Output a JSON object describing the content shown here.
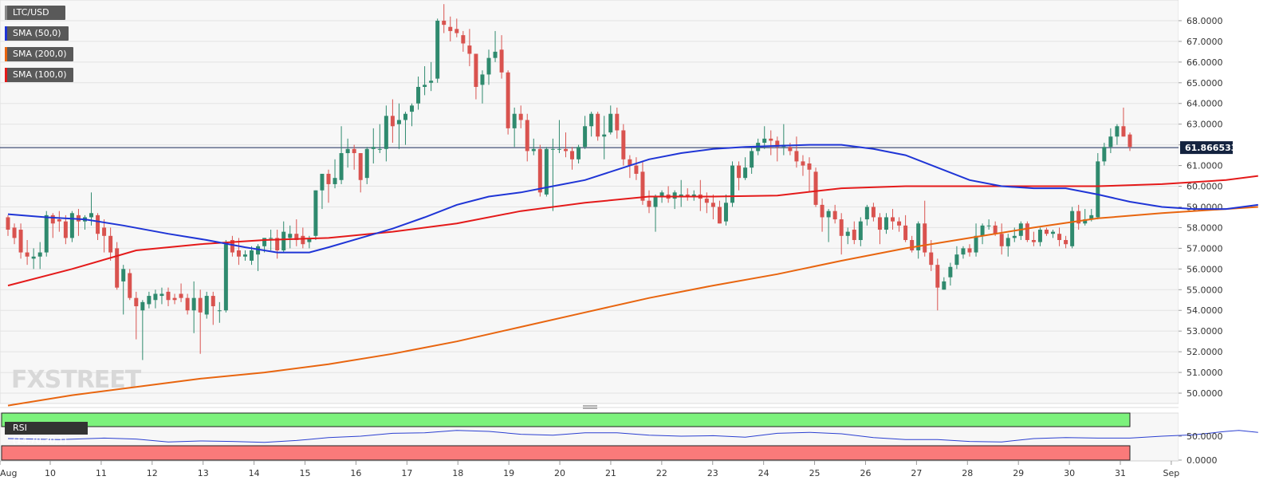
{
  "chart_data": {
    "type": "candlestick",
    "symbol": "LTC/USD",
    "indicators": [
      {
        "label": "SMA (50,0)",
        "color": "#1f35d6"
      },
      {
        "label": "SMA (200,0)",
        "color": "#e8650f"
      },
      {
        "label": "SMA (100,0)",
        "color": "#e41a1a"
      }
    ],
    "rsi_label": "RSI (14,70,30,1)",
    "colors": {
      "up": "#2f8a6e",
      "down": "#d9534f",
      "rsi_line": "#2b3fd1",
      "overbought": "#7cf27c",
      "oversold": "#fa7a7a",
      "price_line": "#1a2a5a",
      "price_tag": "#14233f"
    },
    "price_ylim": [
      49.5,
      69.0
    ],
    "price_ticks": [
      "50.0000",
      "51.0000",
      "52.0000",
      "53.0000",
      "54.0000",
      "55.0000",
      "56.0000",
      "57.0000",
      "58.0000",
      "59.0000",
      "60.0000",
      "61.0000",
      "62.0000",
      "63.0000",
      "64.0000",
      "65.0000",
      "66.0000",
      "67.0000",
      "68.0000"
    ],
    "current_price": "61.866533",
    "rsi_ticks": [
      "50.0000",
      "0.0000"
    ],
    "x_ticks": [
      "Aug",
      "10",
      "11",
      "12",
      "13",
      "14",
      "15",
      "16",
      "17",
      "18",
      "19",
      "20",
      "21",
      "22",
      "23",
      "24",
      "25",
      "26",
      "27",
      "28",
      "29",
      "30",
      "31",
      "Sep"
    ],
    "candles": [
      [
        58.5,
        58.6,
        57.6,
        57.9
      ],
      [
        58.0,
        58.2,
        57.2,
        57.5
      ],
      [
        57.9,
        58.2,
        56.5,
        56.8
      ],
      [
        56.8,
        57.4,
        56.2,
        56.6
      ],
      [
        56.5,
        57.0,
        56.0,
        56.6
      ],
      [
        56.6,
        57.3,
        56.0,
        56.8
      ],
      [
        56.8,
        58.8,
        56.6,
        58.6
      ],
      [
        58.6,
        58.7,
        57.5,
        58.2
      ],
      [
        58.4,
        58.8,
        57.8,
        58.3
      ],
      [
        58.3,
        58.6,
        57.2,
        57.5
      ],
      [
        57.5,
        58.8,
        57.3,
        58.7
      ],
      [
        58.6,
        58.9,
        57.6,
        58.3
      ],
      [
        58.3,
        58.6,
        57.9,
        58.5
      ],
      [
        58.5,
        59.7,
        58.1,
        58.7
      ],
      [
        58.6,
        58.7,
        57.4,
        57.7
      ],
      [
        58.0,
        58.4,
        56.8,
        57.6
      ],
      [
        57.6,
        58.0,
        56.4,
        56.8
      ],
      [
        57.0,
        57.3,
        55.0,
        55.1
      ],
      [
        55.4,
        56.2,
        53.8,
        56.0
      ],
      [
        55.8,
        56.0,
        54.5,
        54.6
      ],
      [
        54.6,
        54.9,
        52.6,
        54.2
      ],
      [
        54.0,
        54.5,
        51.6,
        54.4
      ],
      [
        54.3,
        54.9,
        54.1,
        54.7
      ],
      [
        54.5,
        55.0,
        54.1,
        54.8
      ],
      [
        54.7,
        55.1,
        54.3,
        54.8
      ],
      [
        54.9,
        55.1,
        54.2,
        54.5
      ],
      [
        54.6,
        54.8,
        54.3,
        54.5
      ],
      [
        54.8,
        55.3,
        54.4,
        54.6
      ],
      [
        54.6,
        54.8,
        53.8,
        54.0
      ],
      [
        54.0,
        55.4,
        52.9,
        54.6
      ],
      [
        54.6,
        55.0,
        51.9,
        53.9
      ],
      [
        53.8,
        54.9,
        53.6,
        54.7
      ],
      [
        54.7,
        54.9,
        53.3,
        54.2
      ],
      [
        54.0,
        54.4,
        53.4,
        54.0
      ],
      [
        54.0,
        57.4,
        53.9,
        57.2
      ],
      [
        57.4,
        57.6,
        56.6,
        56.8
      ],
      [
        56.9,
        57.5,
        56.2,
        56.6
      ],
      [
        56.6,
        56.9,
        56.4,
        56.7
      ],
      [
        56.4,
        57.1,
        56.2,
        56.9
      ],
      [
        56.7,
        57.2,
        55.9,
        57.1
      ],
      [
        57.1,
        57.5,
        56.8,
        57.5
      ],
      [
        57.5,
        57.9,
        56.9,
        57.5
      ],
      [
        57.5,
        57.9,
        56.5,
        56.9
      ],
      [
        56.9,
        58.3,
        56.8,
        57.8
      ],
      [
        57.5,
        58.1,
        57.0,
        57.7
      ],
      [
        57.7,
        58.4,
        57.1,
        57.4
      ],
      [
        57.6,
        58.0,
        57.0,
        57.2
      ],
      [
        57.3,
        57.6,
        57.0,
        57.5
      ],
      [
        57.6,
        59.8,
        57.4,
        59.8
      ],
      [
        59.8,
        60.6,
        58.9,
        60.6
      ],
      [
        60.6,
        60.8,
        59.2,
        60.1
      ],
      [
        60.1,
        61.3,
        59.9,
        60.4
      ],
      [
        60.3,
        62.9,
        60.1,
        61.6
      ],
      [
        61.6,
        62.3,
        60.9,
        61.8
      ],
      [
        61.8,
        62.0,
        60.8,
        61.6
      ],
      [
        61.6,
        61.6,
        59.7,
        60.3
      ],
      [
        60.4,
        61.9,
        60.1,
        61.8
      ],
      [
        61.8,
        62.8,
        61.1,
        61.9
      ],
      [
        61.8,
        63.0,
        61.6,
        61.8
      ],
      [
        61.8,
        63.9,
        61.2,
        63.4
      ],
      [
        63.4,
        64.2,
        62.1,
        62.9
      ],
      [
        63.0,
        64.0,
        61.8,
        63.2
      ],
      [
        63.2,
        63.6,
        62.0,
        63.5
      ],
      [
        63.6,
        64.0,
        62.9,
        63.9
      ],
      [
        64.0,
        65.3,
        63.7,
        64.8
      ],
      [
        64.8,
        65.8,
        64.4,
        64.9
      ],
      [
        65.0,
        66.0,
        64.6,
        65.1
      ],
      [
        65.2,
        68.1,
        65.0,
        68.0
      ],
      [
        68.0,
        68.8,
        67.4,
        67.8
      ],
      [
        67.7,
        68.2,
        67.0,
        67.5
      ],
      [
        67.6,
        68.1,
        67.2,
        67.4
      ],
      [
        67.3,
        67.5,
        66.5,
        66.9
      ],
      [
        66.8,
        67.6,
        65.8,
        66.4
      ],
      [
        66.4,
        66.4,
        64.2,
        64.8
      ],
      [
        64.9,
        65.6,
        64.0,
        65.4
      ],
      [
        65.4,
        66.6,
        64.9,
        66.2
      ],
      [
        66.2,
        67.5,
        66.0,
        66.5
      ],
      [
        66.6,
        67.3,
        65.2,
        65.5
      ],
      [
        65.5,
        65.6,
        62.5,
        62.8
      ],
      [
        62.8,
        63.8,
        61.9,
        63.5
      ],
      [
        63.5,
        63.9,
        62.8,
        63.2
      ],
      [
        63.2,
        63.5,
        61.2,
        61.7
      ],
      [
        61.7,
        62.3,
        61.5,
        61.8
      ],
      [
        61.8,
        62.0,
        59.5,
        59.7
      ],
      [
        59.6,
        61.9,
        59.5,
        61.8
      ],
      [
        61.8,
        62.3,
        58.8,
        61.8
      ],
      [
        61.8,
        63.2,
        61.6,
        61.8
      ],
      [
        61.8,
        62.6,
        61.4,
        61.7
      ],
      [
        61.7,
        61.9,
        60.8,
        61.3
      ],
      [
        61.3,
        62.0,
        61.1,
        61.9
      ],
      [
        61.9,
        63.4,
        61.8,
        62.9
      ],
      [
        62.9,
        63.6,
        62.4,
        63.5
      ],
      [
        63.5,
        63.6,
        62.2,
        62.4
      ],
      [
        62.4,
        63.4,
        61.3,
        62.5
      ],
      [
        62.6,
        63.9,
        62.5,
        63.5
      ],
      [
        63.5,
        63.8,
        62.3,
        62.7
      ],
      [
        62.7,
        63.0,
        61.0,
        61.3
      ],
      [
        61.3,
        61.5,
        60.4,
        61.0
      ],
      [
        61.0,
        61.4,
        60.3,
        60.6
      ],
      [
        60.7,
        61.2,
        59.1,
        59.3
      ],
      [
        59.3,
        59.8,
        58.7,
        59.0
      ],
      [
        59.0,
        59.6,
        57.8,
        59.5
      ],
      [
        59.5,
        59.8,
        59.2,
        59.7
      ],
      [
        59.6,
        60.0,
        59.2,
        59.4
      ],
      [
        59.4,
        59.8,
        58.9,
        59.7
      ],
      [
        59.5,
        60.3,
        59.0,
        59.6
      ],
      [
        59.6,
        59.9,
        59.3,
        59.5
      ],
      [
        59.5,
        59.8,
        59.3,
        59.6
      ],
      [
        59.6,
        60.3,
        58.8,
        59.4
      ],
      [
        59.4,
        59.7,
        58.7,
        59.2
      ],
      [
        59.2,
        59.6,
        58.4,
        59.0
      ],
      [
        59.0,
        59.3,
        58.2,
        58.2
      ],
      [
        58.3,
        59.6,
        58.1,
        59.2
      ],
      [
        59.2,
        61.2,
        59.0,
        61.0
      ],
      [
        61.0,
        61.2,
        59.8,
        60.4
      ],
      [
        60.4,
        61.4,
        60.3,
        60.9
      ],
      [
        60.9,
        61.9,
        60.6,
        61.7
      ],
      [
        61.7,
        62.3,
        61.5,
        62.1
      ],
      [
        62.1,
        62.9,
        61.8,
        62.3
      ],
      [
        62.3,
        62.7,
        61.5,
        62.2
      ],
      [
        62.2,
        62.4,
        61.2,
        61.9
      ],
      [
        61.9,
        63.0,
        61.5,
        62.0
      ],
      [
        61.9,
        62.1,
        61.5,
        61.7
      ],
      [
        61.7,
        62.4,
        60.9,
        61.2
      ],
      [
        61.2,
        61.5,
        60.5,
        61.0
      ],
      [
        61.1,
        61.4,
        59.7,
        60.8
      ],
      [
        60.7,
        60.9,
        59.0,
        59.1
      ],
      [
        59.1,
        59.4,
        57.8,
        58.5
      ],
      [
        58.5,
        58.9,
        57.3,
        58.8
      ],
      [
        58.8,
        59.1,
        58.2,
        58.4
      ],
      [
        58.4,
        58.7,
        56.7,
        57.6
      ],
      [
        57.6,
        58.0,
        57.2,
        57.8
      ],
      [
        57.9,
        58.3,
        57.2,
        57.4
      ],
      [
        57.4,
        58.5,
        57.1,
        58.3
      ],
      [
        58.4,
        59.1,
        58.1,
        59.0
      ],
      [
        59.0,
        59.2,
        58.3,
        58.5
      ],
      [
        58.5,
        58.7,
        57.2,
        57.9
      ],
      [
        57.9,
        58.7,
        57.7,
        58.5
      ],
      [
        58.5,
        58.9,
        57.9,
        58.3
      ],
      [
        58.3,
        58.5,
        57.8,
        58.1
      ],
      [
        58.1,
        58.6,
        57.3,
        57.4
      ],
      [
        57.4,
        57.6,
        56.8,
        56.9
      ],
      [
        56.9,
        58.3,
        56.5,
        58.2
      ],
      [
        58.2,
        59.3,
        56.6,
        56.8
      ],
      [
        56.8,
        57.4,
        55.9,
        56.2
      ],
      [
        56.2,
        56.5,
        54.0,
        55.1
      ],
      [
        55.0,
        55.6,
        55.0,
        55.4
      ],
      [
        55.6,
        56.3,
        55.2,
        56.1
      ],
      [
        56.2,
        57.1,
        56.0,
        56.7
      ],
      [
        56.7,
        57.1,
        56.5,
        57.0
      ],
      [
        57.0,
        57.2,
        56.6,
        56.8
      ],
      [
        56.8,
        58.2,
        56.6,
        57.6
      ],
      [
        57.6,
        58.2,
        57.2,
        58.1
      ],
      [
        58.1,
        58.4,
        57.9,
        58.1
      ],
      [
        58.1,
        58.3,
        57.6,
        57.7
      ],
      [
        57.7,
        58.2,
        56.7,
        57.1
      ],
      [
        57.1,
        57.7,
        56.6,
        57.5
      ],
      [
        57.5,
        58.0,
        57.3,
        57.6
      ],
      [
        57.6,
        58.3,
        57.4,
        58.2
      ],
      [
        58.2,
        58.3,
        57.3,
        57.4
      ],
      [
        57.4,
        57.8,
        57.1,
        57.3
      ],
      [
        57.3,
        58.0,
        57.1,
        57.9
      ],
      [
        57.9,
        58.0,
        57.6,
        57.7
      ],
      [
        57.7,
        57.9,
        57.5,
        57.8
      ],
      [
        57.7,
        58.0,
        57.1,
        57.4
      ],
      [
        57.4,
        57.6,
        57.0,
        57.2
      ],
      [
        57.1,
        59.0,
        57.0,
        58.8
      ],
      [
        58.8,
        59.1,
        57.9,
        58.2
      ],
      [
        58.2,
        58.9,
        58.1,
        58.4
      ],
      [
        58.4,
        58.9,
        58.3,
        58.6
      ],
      [
        58.5,
        61.6,
        58.4,
        61.2
      ],
      [
        61.2,
        62.1,
        61.0,
        61.9
      ],
      [
        61.9,
        62.8,
        61.6,
        62.4
      ],
      [
        62.4,
        63.0,
        62.0,
        62.9
      ],
      [
        62.9,
        63.8,
        62.4,
        62.4
      ],
      [
        62.5,
        62.6,
        61.7,
        61.9
      ]
    ],
    "sma50": [
      [
        0,
        58.65
      ],
      [
        6,
        58.5
      ],
      [
        12,
        58.4
      ],
      [
        18,
        58.1
      ],
      [
        25,
        57.7
      ],
      [
        31,
        57.4
      ],
      [
        37,
        57.05
      ],
      [
        42,
        56.8
      ],
      [
        47,
        56.8
      ],
      [
        50,
        57.05
      ],
      [
        55,
        57.5
      ],
      [
        60,
        57.95
      ],
      [
        65,
        58.5
      ],
      [
        70,
        59.1
      ],
      [
        75,
        59.5
      ],
      [
        80,
        59.7
      ],
      [
        85,
        60.0
      ],
      [
        90,
        60.3
      ],
      [
        95,
        60.8
      ],
      [
        100,
        61.3
      ],
      [
        105,
        61.6
      ],
      [
        110,
        61.8
      ],
      [
        115,
        61.9
      ],
      [
        120,
        61.95
      ],
      [
        125,
        62.0
      ],
      [
        130,
        62.0
      ],
      [
        135,
        61.8
      ],
      [
        140,
        61.5
      ],
      [
        145,
        60.9
      ],
      [
        150,
        60.3
      ],
      [
        155,
        60.0
      ],
      [
        160,
        59.9
      ],
      [
        165,
        59.9
      ],
      [
        170,
        59.6
      ],
      [
        175,
        59.25
      ],
      [
        180,
        59.0
      ],
      [
        185,
        58.9
      ],
      [
        190,
        58.9
      ],
      [
        195,
        59.1
      ]
    ],
    "sma100": [
      [
        0,
        55.2
      ],
      [
        10,
        56.0
      ],
      [
        20,
        56.9
      ],
      [
        30,
        57.2
      ],
      [
        40,
        57.4
      ],
      [
        50,
        57.5
      ],
      [
        60,
        57.8
      ],
      [
        70,
        58.2
      ],
      [
        80,
        58.8
      ],
      [
        90,
        59.2
      ],
      [
        100,
        59.5
      ],
      [
        110,
        59.5
      ],
      [
        120,
        59.55
      ],
      [
        130,
        59.9
      ],
      [
        140,
        60.0
      ],
      [
        150,
        60.0
      ],
      [
        160,
        60.0
      ],
      [
        170,
        60.0
      ],
      [
        180,
        60.1
      ],
      [
        190,
        60.3
      ],
      [
        195,
        60.5
      ]
    ],
    "sma200": [
      [
        0,
        49.4
      ],
      [
        10,
        49.9
      ],
      [
        20,
        50.3
      ],
      [
        30,
        50.7
      ],
      [
        40,
        51.0
      ],
      [
        50,
        51.4
      ],
      [
        60,
        51.9
      ],
      [
        70,
        52.5
      ],
      [
        80,
        53.2
      ],
      [
        90,
        53.9
      ],
      [
        100,
        54.6
      ],
      [
        110,
        55.2
      ],
      [
        120,
        55.75
      ],
      [
        130,
        56.4
      ],
      [
        140,
        57.0
      ],
      [
        150,
        57.5
      ],
      [
        160,
        58.0
      ],
      [
        170,
        58.45
      ],
      [
        180,
        58.7
      ],
      [
        190,
        58.9
      ],
      [
        195,
        59.0
      ]
    ],
    "rsi": [
      [
        0,
        45
      ],
      [
        8,
        43
      ],
      [
        15,
        46
      ],
      [
        20,
        44
      ],
      [
        25,
        38
      ],
      [
        30,
        40
      ],
      [
        35,
        39
      ],
      [
        40,
        37
      ],
      [
        45,
        41
      ],
      [
        50,
        47
      ],
      [
        55,
        50
      ],
      [
        60,
        56
      ],
      [
        65,
        57
      ],
      [
        70,
        62
      ],
      [
        75,
        60
      ],
      [
        80,
        54
      ],
      [
        85,
        52
      ],
      [
        90,
        57
      ],
      [
        95,
        57
      ],
      [
        100,
        52
      ],
      [
        105,
        50
      ],
      [
        110,
        51
      ],
      [
        115,
        48
      ],
      [
        120,
        56
      ],
      [
        125,
        58
      ],
      [
        130,
        55
      ],
      [
        135,
        47
      ],
      [
        140,
        43
      ],
      [
        145,
        43
      ],
      [
        150,
        39
      ],
      [
        155,
        38
      ],
      [
        160,
        45
      ],
      [
        165,
        47
      ],
      [
        170,
        46
      ],
      [
        175,
        46
      ],
      [
        180,
        50
      ],
      [
        185,
        53
      ],
      [
        190,
        60
      ],
      [
        192,
        62
      ],
      [
        195,
        58
      ]
    ]
  }
}
